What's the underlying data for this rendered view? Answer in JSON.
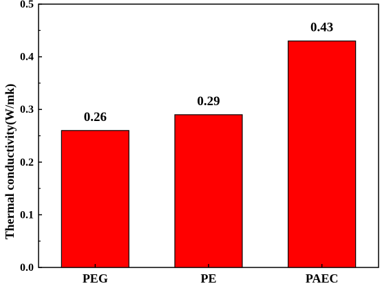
{
  "chart_data": {
    "type": "bar",
    "categories": [
      "PEG",
      "PE",
      "PAEC"
    ],
    "values": [
      0.26,
      0.29,
      0.43
    ],
    "data_labels": [
      "0.26",
      "0.29",
      "0.43"
    ],
    "xlabel": "",
    "ylabel": "Thermal conductivity(W/mk)",
    "ylim": [
      0.0,
      0.5
    ],
    "yticks": [
      0.0,
      0.1,
      0.2,
      0.3,
      0.4,
      0.5
    ],
    "ytick_labels": [
      "0.0",
      "0.1",
      "0.2",
      "0.3",
      "0.4",
      "0.5"
    ],
    "bar_color": "#ff0000",
    "bar_edge_color": "#000000",
    "grid": false,
    "legend": "none"
  }
}
